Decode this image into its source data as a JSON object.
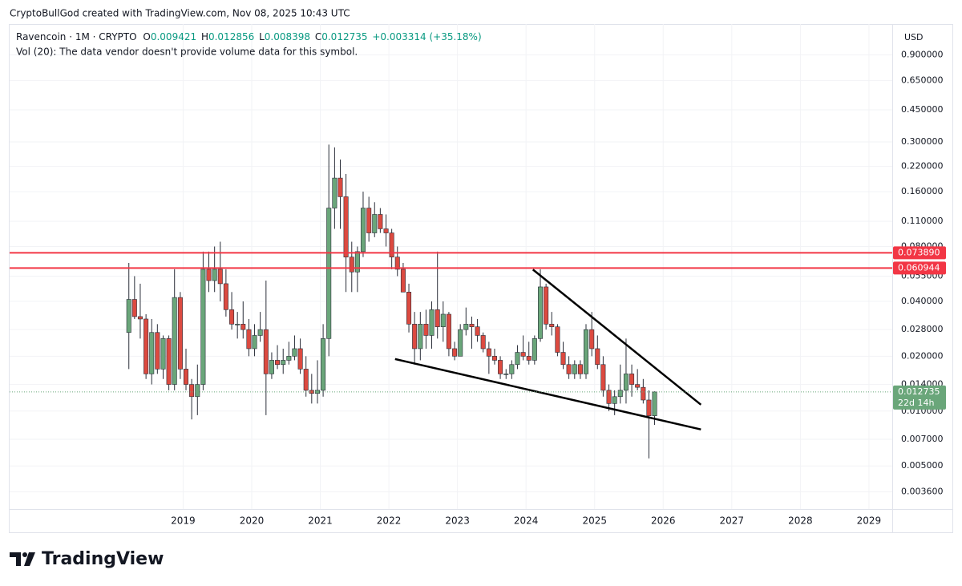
{
  "header": "CryptoBullGod created with TradingView.com, Nov 08, 2025 10:43 UTC",
  "brand": "TradingView",
  "chart_data": {
    "type": "candlestick",
    "legend": {
      "symbol": "Ravencoin · 1M · CRYPTO",
      "ohlc_labels": [
        "O",
        "H",
        "L",
        "C"
      ],
      "change": "+0.003314",
      "change_pct": "(+35.18%)",
      "volume_note": "Vol (20): The data vendor doesn't provide volume data for this symbol."
    },
    "currency": "USD",
    "log_scale": true,
    "grid": true,
    "up_color": "#6aa67a",
    "down_color": "#dc4a40",
    "x": [
      2018.167,
      2018.25,
      2018.333,
      2018.417,
      2018.5,
      2018.583,
      2018.667,
      2018.75,
      2018.833,
      2018.917,
      2019,
      2019.083,
      2019.167,
      2019.25,
      2019.333,
      2019.417,
      2019.5,
      2019.583,
      2019.667,
      2019.75,
      2019.833,
      2019.917,
      2020,
      2020.083,
      2020.167,
      2020.25,
      2020.333,
      2020.417,
      2020.5,
      2020.583,
      2020.667,
      2020.75,
      2020.833,
      2020.917,
      2021,
      2021.083,
      2021.167,
      2021.25,
      2021.333,
      2021.417,
      2021.5,
      2021.583,
      2021.667,
      2021.75,
      2021.833,
      2021.917,
      2022,
      2022.083,
      2022.167,
      2022.25,
      2022.333,
      2022.417,
      2022.5,
      2022.583,
      2022.667,
      2022.75,
      2022.833,
      2022.917,
      2023,
      2023.083,
      2023.167,
      2023.25,
      2023.333,
      2023.417,
      2023.5,
      2023.583,
      2023.667,
      2023.75,
      2023.833,
      2023.917,
      2024,
      2024.083,
      2024.167,
      2024.25,
      2024.333,
      2024.417,
      2024.5,
      2024.583,
      2024.667,
      2024.75,
      2024.833,
      2024.917,
      2025,
      2025.083,
      2025.167,
      2025.25,
      2025.333,
      2025.417,
      2025.5,
      2025.583,
      2025.667,
      2025.75,
      2025.833
    ],
    "open": [
      0.027,
      0.041,
      0.033,
      0.032,
      0.016,
      0.027,
      0.017,
      0.025,
      0.014,
      0.042,
      0.017,
      0.014,
      0.012,
      0.014,
      0.06,
      0.052,
      0.06,
      0.05,
      0.036,
      0.03,
      0.03,
      0.028,
      0.022,
      0.026,
      0.028,
      0.016,
      0.019,
      0.018,
      0.019,
      0.02,
      0.022,
      0.017,
      0.013,
      0.0125,
      0.013,
      0.025,
      0.13,
      0.19,
      0.15,
      0.07,
      0.058,
      0.075,
      0.13,
      0.095,
      0.12,
      0.1,
      0.095,
      0.07,
      0.06,
      0.045,
      0.03,
      0.022,
      0.03,
      0.026,
      0.036,
      0.029,
      0.034,
      0.022,
      0.02,
      0.028,
      0.03,
      0.029,
      0.026,
      0.022,
      0.02,
      0.019,
      0.016,
      0.016,
      0.018,
      0.021,
      0.02,
      0.019,
      0.025,
      0.048,
      0.03,
      0.029,
      0.021,
      0.018,
      0.016,
      0.018,
      0.016,
      0.028,
      0.022,
      0.018,
      0.013,
      0.011,
      0.012,
      0.013,
      0.016,
      0.014,
      0.0135,
      0.0115,
      0.009421
    ],
    "high": [
      0.065,
      0.055,
      0.05,
      0.034,
      0.032,
      0.03,
      0.026,
      0.026,
      0.06,
      0.045,
      0.022,
      0.015,
      0.018,
      0.075,
      0.075,
      0.08,
      0.085,
      0.06,
      0.045,
      0.035,
      0.04,
      0.032,
      0.03,
      0.035,
      0.052,
      0.021,
      0.023,
      0.022,
      0.024,
      0.026,
      0.025,
      0.02,
      0.016,
      0.019,
      0.03,
      0.29,
      0.28,
      0.24,
      0.2,
      0.085,
      0.08,
      0.16,
      0.15,
      0.14,
      0.13,
      0.12,
      0.1,
      0.08,
      0.065,
      0.05,
      0.035,
      0.035,
      0.036,
      0.04,
      0.075,
      0.04,
      0.035,
      0.024,
      0.03,
      0.037,
      0.033,
      0.032,
      0.027,
      0.024,
      0.022,
      0.02,
      0.017,
      0.019,
      0.023,
      0.026,
      0.024,
      0.026,
      0.06,
      0.05,
      0.035,
      0.03,
      0.024,
      0.02,
      0.019,
      0.019,
      0.03,
      0.035,
      0.026,
      0.02,
      0.014,
      0.013,
      0.018,
      0.025,
      0.018,
      0.017,
      0.015,
      0.013,
      0.012856
    ],
    "low": [
      0.017,
      0.032,
      0.025,
      0.015,
      0.014,
      0.016,
      0.015,
      0.013,
      0.013,
      0.015,
      0.013,
      0.009,
      0.0095,
      0.013,
      0.045,
      0.045,
      0.04,
      0.033,
      0.028,
      0.025,
      0.025,
      0.02,
      0.02,
      0.024,
      0.0095,
      0.015,
      0.017,
      0.016,
      0.018,
      0.019,
      0.016,
      0.012,
      0.011,
      0.011,
      0.012,
      0.02,
      0.1,
      0.1,
      0.045,
      0.045,
      0.045,
      0.07,
      0.085,
      0.09,
      0.095,
      0.08,
      0.06,
      0.055,
      0.045,
      0.027,
      0.018,
      0.019,
      0.022,
      0.022,
      0.025,
      0.024,
      0.02,
      0.019,
      0.02,
      0.026,
      0.022,
      0.024,
      0.021,
      0.016,
      0.018,
      0.015,
      0.015,
      0.015,
      0.017,
      0.019,
      0.018,
      0.018,
      0.024,
      0.028,
      0.026,
      0.02,
      0.017,
      0.015,
      0.015,
      0.015,
      0.015,
      0.02,
      0.017,
      0.012,
      0.01,
      0.0095,
      0.011,
      0.011,
      0.012,
      0.013,
      0.011,
      0.0055,
      0.008398
    ],
    "close": [
      0.041,
      0.033,
      0.032,
      0.016,
      0.027,
      0.017,
      0.025,
      0.014,
      0.042,
      0.017,
      0.014,
      0.012,
      0.014,
      0.06,
      0.052,
      0.06,
      0.05,
      0.036,
      0.03,
      0.03,
      0.028,
      0.022,
      0.026,
      0.028,
      0.016,
      0.019,
      0.018,
      0.019,
      0.02,
      0.022,
      0.017,
      0.013,
      0.0125,
      0.013,
      0.025,
      0.13,
      0.19,
      0.15,
      0.07,
      0.058,
      0.075,
      0.13,
      0.095,
      0.12,
      0.1,
      0.095,
      0.07,
      0.06,
      0.045,
      0.03,
      0.022,
      0.03,
      0.026,
      0.036,
      0.029,
      0.034,
      0.022,
      0.02,
      0.028,
      0.03,
      0.029,
      0.026,
      0.022,
      0.02,
      0.019,
      0.016,
      0.016,
      0.018,
      0.021,
      0.02,
      0.019,
      0.025,
      0.048,
      0.03,
      0.029,
      0.021,
      0.018,
      0.016,
      0.018,
      0.016,
      0.028,
      0.022,
      0.018,
      0.013,
      0.011,
      0.012,
      0.013,
      0.016,
      0.014,
      0.0135,
      0.0115,
      0.009421,
      0.012735
    ],
    "xlim": [
      2016.47,
      2029.34
    ],
    "xticks": [
      2019,
      2020,
      2021,
      2022,
      2023,
      2024,
      2025,
      2026,
      2027,
      2028,
      2029
    ],
    "ylim": [
      0.0029,
      1.33
    ],
    "yticks": [
      {
        "value": 0.9,
        "label": "0.900000"
      },
      {
        "value": 0.65,
        "label": "0.650000"
      },
      {
        "value": 0.45,
        "label": "0.450000"
      },
      {
        "value": 0.3,
        "label": "0.300000"
      },
      {
        "value": 0.22,
        "label": "0.220000"
      },
      {
        "value": 0.16,
        "label": "0.160000"
      },
      {
        "value": 0.11,
        "label": "0.110000"
      },
      {
        "value": 0.08,
        "label": "0.080000"
      },
      {
        "value": 0.055,
        "label": "0.055000"
      },
      {
        "value": 0.04,
        "label": "0.040000"
      },
      {
        "value": 0.028,
        "label": "0.028000"
      },
      {
        "value": 0.02,
        "label": "0.020000"
      },
      {
        "value": 0.014,
        "label": "0.014000"
      },
      {
        "value": 0.01,
        "label": "0.010000"
      },
      {
        "value": 0.007,
        "label": "0.007000"
      },
      {
        "value": 0.005,
        "label": "0.005000"
      },
      {
        "value": 0.0036,
        "label": "0.003600"
      }
    ],
    "horizontal_lines": [
      {
        "value": 0.07389,
        "label": "0.073890",
        "color": "#f23645"
      },
      {
        "value": 0.060944,
        "label": "0.060944",
        "color": "#f23645"
      }
    ],
    "current_price": {
      "value": 0.012735,
      "label": "0.012735"
    },
    "countdown": "22d 14h",
    "trendlines": [
      {
        "x": [
          2024.1,
          2026.55
        ],
        "y": [
          0.0598,
          0.01084
        ],
        "color": "#000000"
      },
      {
        "x": [
          2022.09,
          2026.55
        ],
        "y": [
          0.0193,
          0.00793
        ],
        "color": "#000000"
      }
    ]
  }
}
